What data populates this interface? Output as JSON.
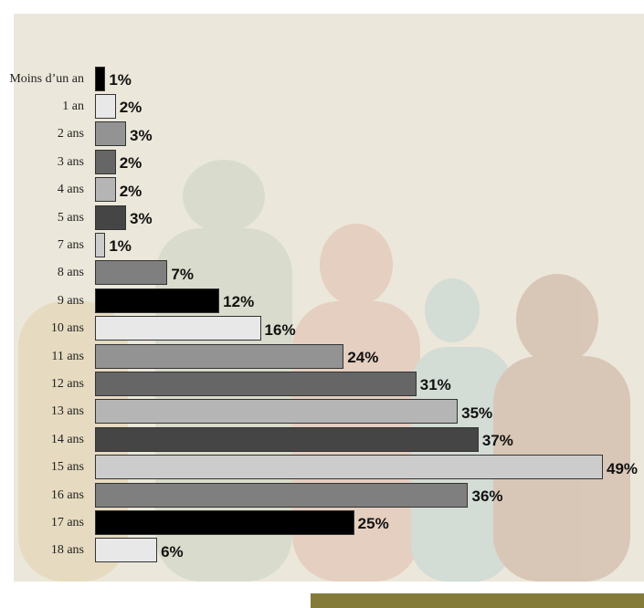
{
  "chart_data": {
    "type": "bar",
    "orientation": "horizontal",
    "categories": [
      "Moins d’un an",
      "1 an",
      "2 ans",
      "3 ans",
      "4 ans",
      "5 ans",
      "7 ans",
      "8 ans",
      "9 ans",
      "10 ans",
      "11 ans",
      "12 ans",
      "13 ans",
      "14 ans",
      "15 ans",
      "16 ans",
      "17 ans",
      "18 ans"
    ],
    "values": [
      1,
      2,
      3,
      2,
      2,
      3,
      1,
      7,
      12,
      16,
      24,
      31,
      35,
      37,
      49,
      36,
      25,
      6
    ],
    "value_labels": [
      "1%",
      "2%",
      "3%",
      "2%",
      "2%",
      "3%",
      "1%",
      "7%",
      "12%",
      "16%",
      "24%",
      "31%",
      "35%",
      "37%",
      "49%",
      "36%",
      "25%",
      "6%"
    ],
    "colors": [
      "#000000",
      "#e8e8e8",
      "#939393",
      "#666666",
      "#b5b5b5",
      "#454545",
      "#cccccc",
      "#7f7f7f",
      "#000000",
      "#e8e8e8",
      "#939393",
      "#666666",
      "#b5b5b5",
      "#454545",
      "#cccccc",
      "#7f7f7f",
      "#000000",
      "#e8e8e8"
    ]
  }
}
